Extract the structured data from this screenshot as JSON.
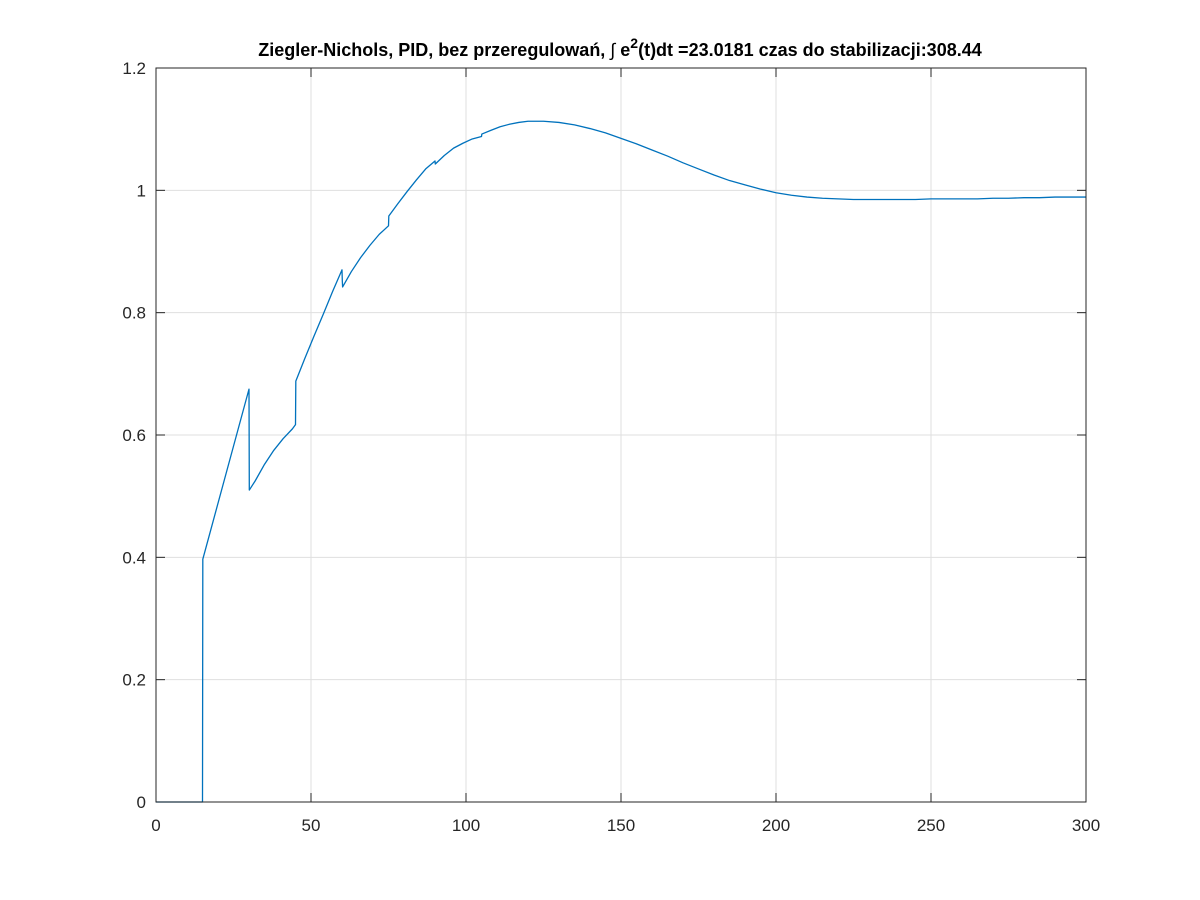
{
  "figure": {
    "title": {
      "prefix": "Ziegler-Nichols, PID, bez przeregulowań, ",
      "integral_symbol": "∫",
      "e": " e",
      "superscript": "2",
      "suffix": "(t)dt =23.0181 czas do stabilizacji:308.44"
    }
  },
  "colors": {
    "background": "#ffffff",
    "axes_background": "#ffffff",
    "axis": "#262626",
    "grid": "#dfdfdf",
    "series": "#0072bd"
  },
  "chart_data": {
    "type": "line",
    "title": "Ziegler-Nichols, PID, bez przeregulowań, ∫ e2(t)dt =23.0181 czas do stabilizacji:308.44",
    "xlabel": "",
    "ylabel": "",
    "xlim": [
      0,
      300
    ],
    "ylim": [
      0,
      1.2
    ],
    "xticks": [
      0,
      50,
      100,
      150,
      200,
      250,
      300
    ],
    "xtick_labels": [
      "0",
      "50",
      "100",
      "150",
      "200",
      "250",
      "300"
    ],
    "yticks": [
      0,
      0.2,
      0.4,
      0.6,
      0.8,
      1,
      1.2
    ],
    "ytick_labels": [
      "0",
      "0.2",
      "0.4",
      "0.6",
      "0.8",
      "1",
      "1.2"
    ],
    "grid": true,
    "box": true,
    "series": [
      {
        "x": [
          0,
          15,
          15.1,
          30,
          30.1,
          32,
          35,
          38,
          41,
          44,
          45,
          45.1,
          48,
          51,
          54,
          57,
          60,
          60.1,
          60.2,
          63,
          66,
          69,
          72,
          75,
          75.1,
          78,
          81,
          84,
          87,
          90,
          90.1,
          93,
          96,
          99,
          102,
          105,
          105.1,
          108,
          111,
          114,
          117,
          120,
          125,
          130,
          135,
          140,
          145,
          150,
          155,
          160,
          165,
          170,
          175,
          180,
          185,
          190,
          195,
          200,
          205,
          210,
          215,
          220,
          225,
          230,
          235,
          240,
          245,
          250,
          255,
          260,
          265,
          270,
          275,
          280,
          285,
          290,
          295,
          300
        ],
        "y": [
          0,
          0,
          0.397,
          0.675,
          0.51,
          0.525,
          0.552,
          0.575,
          0.594,
          0.61,
          0.617,
          0.688,
          0.725,
          0.762,
          0.798,
          0.835,
          0.87,
          0.852,
          0.842,
          0.867,
          0.89,
          0.91,
          0.928,
          0.942,
          0.958,
          0.978,
          0.998,
          1.017,
          1.035,
          1.048,
          1.043,
          1.057,
          1.069,
          1.077,
          1.084,
          1.088,
          1.092,
          1.098,
          1.104,
          1.108,
          1.111,
          1.113,
          1.113,
          1.111,
          1.107,
          1.101,
          1.094,
          1.085,
          1.076,
          1.066,
          1.056,
          1.045,
          1.035,
          1.025,
          1.016,
          1.009,
          1.002,
          0.996,
          0.992,
          0.989,
          0.987,
          0.986,
          0.985,
          0.985,
          0.985,
          0.985,
          0.985,
          0.986,
          0.986,
          0.986,
          0.986,
          0.987,
          0.987,
          0.988,
          0.988,
          0.989,
          0.989,
          0.989
        ]
      }
    ]
  }
}
